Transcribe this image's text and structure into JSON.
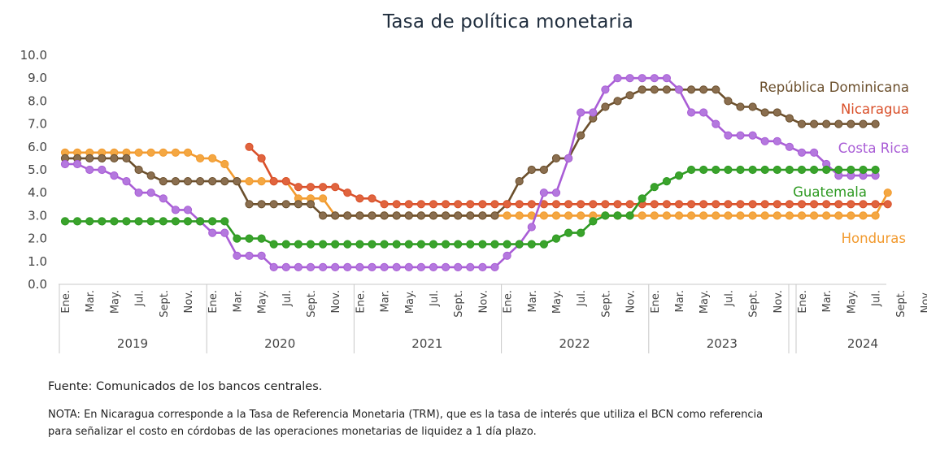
{
  "chart_data": {
    "type": "line",
    "title": "Tasa de política monetaria",
    "ylim": [
      0,
      10
    ],
    "yticks": [
      "0.0",
      "1.0",
      "2.0",
      "3.0",
      "4.0",
      "5.0",
      "6.0",
      "7.0",
      "8.0",
      "9.0",
      "10.0"
    ],
    "month_labels": [
      "Ene.",
      "Mar.",
      "May.",
      "Jul.",
      "Sept.",
      "Nov."
    ],
    "years": [
      "2019",
      "2020",
      "2021",
      "2022",
      "2023",
      "2024"
    ],
    "grid": false,
    "legend": "inline labels at right",
    "series": [
      {
        "name": "República Dominicana",
        "color": "#6b4f2c",
        "marker": "#8a6e4f",
        "start": 0,
        "values": [
          5.5,
          5.5,
          5.5,
          5.5,
          5.5,
          5.5,
          5.0,
          4.75,
          4.5,
          4.5,
          4.5,
          4.5,
          4.5,
          4.5,
          4.5,
          3.5,
          3.5,
          3.5,
          3.5,
          3.5,
          3.5,
          3.0,
          3.0,
          3.0,
          3.0,
          3.0,
          3.0,
          3.0,
          3.0,
          3.0,
          3.0,
          3.0,
          3.0,
          3.0,
          3.0,
          3.0,
          3.5,
          4.5,
          5.0,
          5.0,
          5.5,
          5.5,
          6.5,
          7.25,
          7.75,
          8.0,
          8.25,
          8.5,
          8.5,
          8.5,
          8.5,
          8.5,
          8.5,
          8.5,
          8.0,
          7.75,
          7.75,
          7.5,
          7.5,
          7.25,
          7.0,
          7.0,
          7.0,
          7.0,
          7.0,
          7.0,
          7.0
        ]
      },
      {
        "name": "Nicaragua",
        "color": "#d9502a",
        "marker": "#e0643e",
        "start": 15,
        "values": [
          6.0,
          5.5,
          4.5,
          4.5,
          4.25,
          4.25,
          4.25,
          4.25,
          4.0,
          3.75,
          3.75,
          3.5,
          3.5,
          3.5,
          3.5,
          3.5,
          3.5,
          3.5,
          3.5,
          3.5,
          3.5,
          3.5,
          3.5,
          3.5,
          3.5,
          3.5,
          3.5,
          3.5,
          3.5,
          3.5,
          3.5,
          3.5,
          3.5,
          3.5,
          3.5,
          3.5,
          3.5,
          3.5,
          3.5,
          3.5,
          3.5,
          3.5,
          3.5,
          3.5,
          3.5,
          3.5,
          3.5,
          3.5,
          3.5,
          3.5,
          3.5,
          3.5,
          3.5
        ]
      },
      {
        "name": "Costa Rica",
        "color": "#a95dd6",
        "marker": "#b478de",
        "start": 0,
        "values": [
          5.25,
          5.25,
          5.0,
          5.0,
          4.75,
          4.5,
          4.0,
          4.0,
          3.75,
          3.25,
          3.25,
          2.75,
          2.25,
          2.25,
          1.25,
          1.25,
          1.25,
          0.75,
          0.75,
          0.75,
          0.75,
          0.75,
          0.75,
          0.75,
          0.75,
          0.75,
          0.75,
          0.75,
          0.75,
          0.75,
          0.75,
          0.75,
          0.75,
          0.75,
          0.75,
          0.75,
          1.25,
          1.75,
          2.5,
          4.0,
          4.0,
          5.5,
          7.5,
          7.5,
          8.5,
          9.0,
          9.0,
          9.0,
          9.0,
          9.0,
          8.5,
          7.5,
          7.5,
          7.0,
          6.5,
          6.5,
          6.5,
          6.25,
          6.25,
          6.0,
          5.75,
          5.75,
          5.25,
          4.75,
          4.75,
          4.75,
          4.75
        ]
      },
      {
        "name": "Guatemala",
        "color": "#2e9a22",
        "marker": "#3aa32c",
        "start": 0,
        "values": [
          2.75,
          2.75,
          2.75,
          2.75,
          2.75,
          2.75,
          2.75,
          2.75,
          2.75,
          2.75,
          2.75,
          2.75,
          2.75,
          2.75,
          2.0,
          2.0,
          2.0,
          1.75,
          1.75,
          1.75,
          1.75,
          1.75,
          1.75,
          1.75,
          1.75,
          1.75,
          1.75,
          1.75,
          1.75,
          1.75,
          1.75,
          1.75,
          1.75,
          1.75,
          1.75,
          1.75,
          1.75,
          1.75,
          1.75,
          1.75,
          2.0,
          2.25,
          2.25,
          2.75,
          3.0,
          3.0,
          3.0,
          3.75,
          4.25,
          4.5,
          4.75,
          5.0,
          5.0,
          5.0,
          5.0,
          5.0,
          5.0,
          5.0,
          5.0,
          5.0,
          5.0,
          5.0,
          5.0,
          5.0,
          5.0,
          5.0,
          5.0
        ]
      },
      {
        "name": "Honduras",
        "color": "#f29a2e",
        "marker": "#f4a742",
        "start": 0,
        "values": [
          5.75,
          5.75,
          5.75,
          5.75,
          5.75,
          5.75,
          5.75,
          5.75,
          5.75,
          5.75,
          5.75,
          5.5,
          5.5,
          5.25,
          4.5,
          4.5,
          4.5,
          4.5,
          4.5,
          3.75,
          3.75,
          3.75,
          3.0,
          3.0,
          3.0,
          3.0,
          3.0,
          3.0,
          3.0,
          3.0,
          3.0,
          3.0,
          3.0,
          3.0,
          3.0,
          3.0,
          3.0,
          3.0,
          3.0,
          3.0,
          3.0,
          3.0,
          3.0,
          3.0,
          3.0,
          3.0,
          3.0,
          3.0,
          3.0,
          3.0,
          3.0,
          3.0,
          3.0,
          3.0,
          3.0,
          3.0,
          3.0,
          3.0,
          3.0,
          3.0,
          3.0,
          3.0,
          3.0,
          3.0,
          3.0,
          3.0,
          3.0,
          4.0
        ]
      }
    ]
  },
  "source_text": "Fuente: Comunicados de los bancos centrales.",
  "note_text": "NOTA: En Nicaragua corresponde a la Tasa de Referencia Monetaria (TRM), que es la tasa de interés que utiliza el BCN como referencia para señalizar el costo en córdobas de las operaciones monetarias de liquidez a 1 día plazo."
}
